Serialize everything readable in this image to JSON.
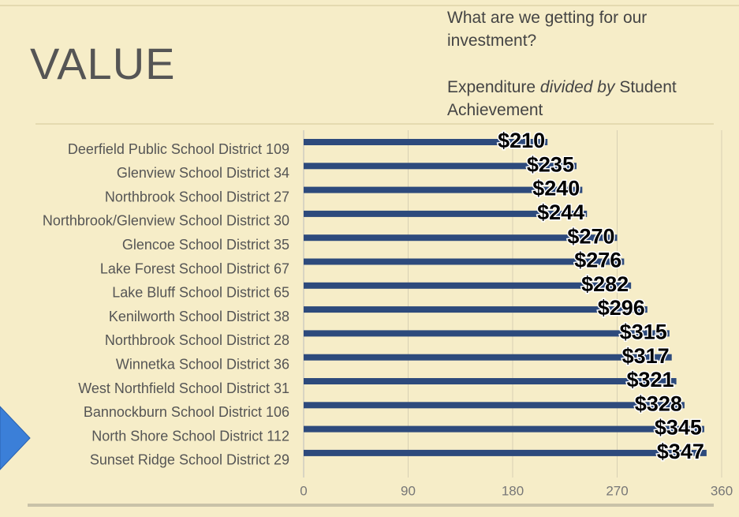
{
  "slide_title": "VALUE",
  "question": "What are we getting for our investment?",
  "subtitle_parts": [
    "Expenditure",
    "divided by",
    "Student Achievement"
  ],
  "chart_data": {
    "type": "hbar",
    "categories": [
      "Deerfield Public School District 109",
      "Glenview School District 34",
      "Northbrook School District 27",
      "Northbrook/Glenview School District 30",
      "Glencoe School District 35",
      "Lake Forest School District 67",
      "Lake Bluff School District 65",
      "Kenilworth School District 38",
      "Northbrook School District 28",
      "Winnetka School District 36",
      "West Northfield School District 31",
      "Bannockburn School District 106",
      "North Shore School District 112",
      "Sunset Ridge School District 29"
    ],
    "values": [
      210,
      235,
      240,
      244,
      270,
      276,
      282,
      296,
      315,
      317,
      321,
      328,
      345,
      347
    ],
    "value_labels": [
      "$210",
      "$235",
      "$240",
      "$244",
      "$270",
      "$276",
      "$282",
      "$296",
      "$315",
      "$317",
      "$321",
      "$328",
      "$345",
      "$347"
    ],
    "color": "#2d4a7c",
    "xlim": [
      0,
      360
    ],
    "xticks": [
      0,
      90,
      180,
      270,
      360
    ],
    "grid": true
  }
}
